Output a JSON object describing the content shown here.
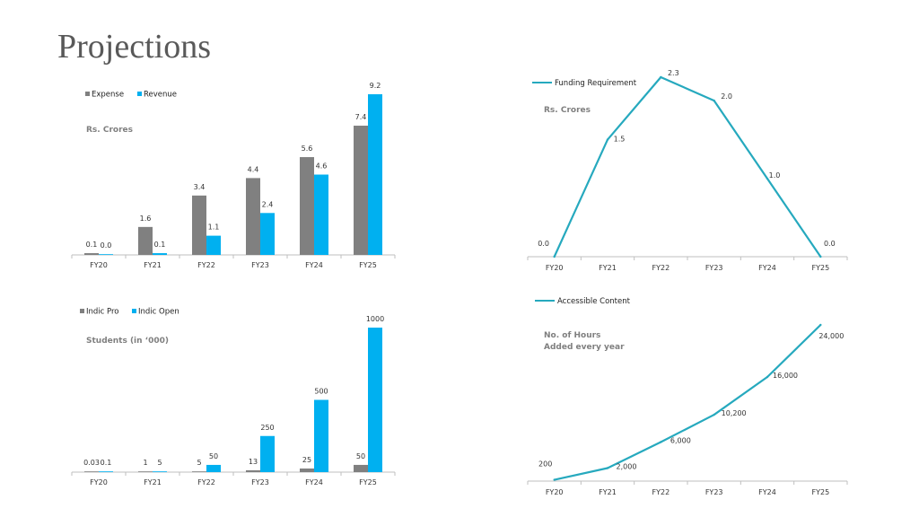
{
  "page": {
    "title": "Projections"
  },
  "colors": {
    "gray": "#808080",
    "blue": "#00b0f0",
    "teal": "#26a9be",
    "axis": "#bfbfbf"
  },
  "chart_data": [
    {
      "id": "expense-revenue",
      "type": "bar",
      "categories": [
        "FY20",
        "FY21",
        "FY22",
        "FY23",
        "FY24",
        "FY25"
      ],
      "series": [
        {
          "name": "Expense",
          "values": [
            0.1,
            1.6,
            3.4,
            4.4,
            5.6,
            7.4
          ],
          "labels": [
            "0.1",
            "1.6",
            "3.4",
            "4.4",
            "5.6",
            "7.4"
          ]
        },
        {
          "name": "Revenue",
          "values": [
            0.0,
            0.1,
            1.1,
            2.4,
            4.6,
            9.2
          ],
          "labels": [
            "0.0",
            "0.1",
            "1.1",
            "2.4",
            "4.6",
            "9.2"
          ]
        }
      ],
      "unit_label": [
        "Rs. Crores"
      ],
      "ylim": [
        0,
        9.2
      ],
      "legend": "top-left"
    },
    {
      "id": "funding-requirement",
      "type": "line",
      "categories": [
        "FY20",
        "FY21",
        "FY22",
        "FY23",
        "FY24",
        "FY25"
      ],
      "series": [
        {
          "name": "Funding Requirement",
          "values": [
            0.0,
            1.5,
            2.3,
            2.0,
            1.0,
            0.0
          ],
          "labels": [
            "0.0",
            "1.5",
            "2.3",
            "2.0",
            "1.0",
            "0.0"
          ]
        }
      ],
      "unit_label": [
        "Rs. Crores"
      ],
      "ylim": [
        0,
        2.3
      ],
      "legend": "top-left"
    },
    {
      "id": "students",
      "type": "bar",
      "categories": [
        "FY20",
        "FY21",
        "FY22",
        "FY23",
        "FY24",
        "FY25"
      ],
      "series": [
        {
          "name": "Indic Pro",
          "values": [
            0.03,
            1,
            5,
            13,
            25,
            50
          ],
          "labels": [
            "0.03",
            "1",
            "5",
            "13",
            "25",
            "50"
          ]
        },
        {
          "name": "Indic Open",
          "values": [
            0.1,
            5,
            50,
            250,
            500,
            1000
          ],
          "labels": [
            "0.1",
            "5",
            "50",
            "250",
            "500",
            "1000"
          ]
        }
      ],
      "unit_label": [
        "Students (in ‘000)"
      ],
      "ylim": [
        0,
        1000
      ],
      "legend": "top-left"
    },
    {
      "id": "accessible-content",
      "type": "line",
      "categories": [
        "FY20",
        "FY21",
        "FY22",
        "FY23",
        "FY24",
        "FY25"
      ],
      "series": [
        {
          "name": "Accessible Content",
          "values": [
            200,
            2000,
            6000,
            10200,
            16000,
            24000
          ],
          "labels": [
            "200",
            "2,000",
            "6,000",
            "10,200",
            "16,000",
            "24,000"
          ]
        }
      ],
      "unit_label": [
        "No. of Hours",
        "Added every year"
      ],
      "ylim": [
        0,
        24000
      ],
      "legend": "top-left"
    }
  ]
}
